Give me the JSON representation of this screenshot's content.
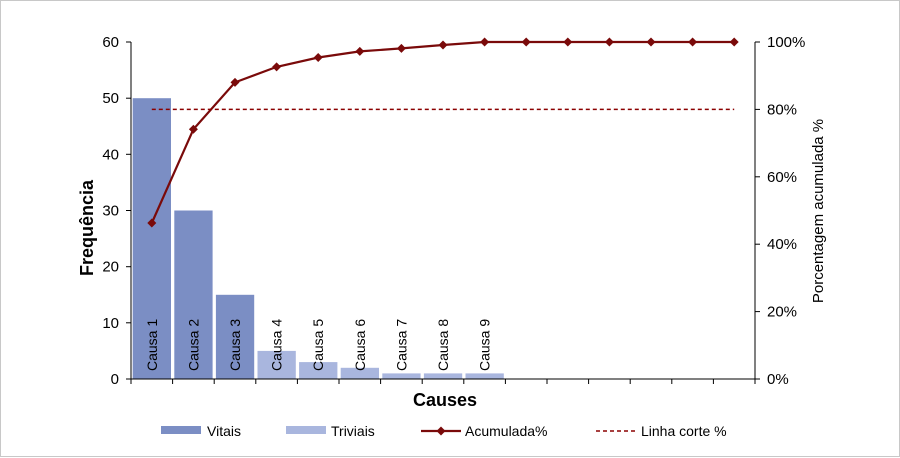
{
  "chart_data": {
    "type": "bar",
    "categories": [
      "Causa 1",
      "Causa 2",
      "Causa 3",
      "Causa 4",
      "Causa 5",
      "Causa 6",
      "Causa 7",
      "Causa 8",
      "Causa 9",
      "",
      "",
      "",
      "",
      "",
      ""
    ],
    "series": [
      {
        "name": "Vitais",
        "kind": "bar",
        "axis": "left",
        "color": "#7b8ec4",
        "values": [
          50,
          30,
          15,
          null,
          null,
          null,
          null,
          null,
          null,
          null,
          null,
          null,
          null,
          null,
          null
        ]
      },
      {
        "name": "Triviais",
        "kind": "bar",
        "axis": "left",
        "color": "#a9b6de",
        "values": [
          null,
          null,
          null,
          5,
          3,
          2,
          1,
          1,
          1,
          null,
          null,
          null,
          null,
          null,
          null
        ]
      },
      {
        "name": "Acumulada%",
        "kind": "line",
        "axis": "right",
        "color": "#7a0a0a",
        "values": [
          46.3,
          74.1,
          88.0,
          92.6,
          95.4,
          97.2,
          98.1,
          99.1,
          100,
          100,
          100,
          100,
          100,
          100,
          100
        ]
      },
      {
        "name": "Linha corte %",
        "kind": "dashed-line",
        "axis": "right",
        "color": "#8b0000",
        "values": [
          80,
          80,
          80,
          80,
          80,
          80,
          80,
          80,
          80,
          80,
          80,
          80,
          80,
          80,
          80
        ]
      }
    ],
    "xlabel": "Causes",
    "ylabel": "Frequência",
    "ylabel_right": "Porcentagem acumulada %",
    "ylim": [
      0,
      60
    ],
    "yticks": [
      "0",
      "10",
      "20",
      "30",
      "40",
      "50",
      "60"
    ],
    "ylim_right": [
      0,
      100
    ],
    "yticks_right": [
      "0%",
      "20%",
      "40%",
      "60%",
      "80%",
      "100%"
    ],
    "grid": false,
    "legend_position": "bottom"
  }
}
